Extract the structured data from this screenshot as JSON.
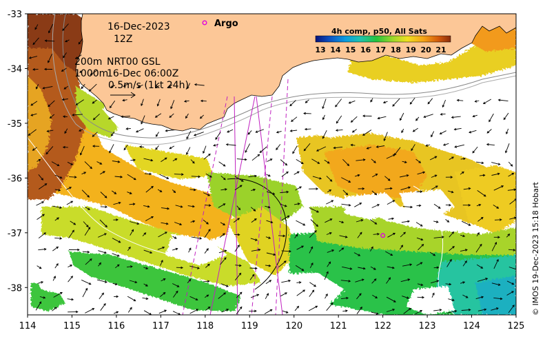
{
  "map": {
    "date": "16-Dec-2023",
    "hour": "12Z",
    "contour_200": "200m",
    "contour_1000": "1000m",
    "current_source": "NRT00 GSL",
    "current_time": "16-Dec 06:00Z",
    "arrow_scale": "0.5m/s (1kt 24h)",
    "argo_label": "Argo",
    "credit": "© IMOS 19-Dec-2023 15:18 Hobart",
    "land_color": "#fcc797",
    "argo_color": "#e000e0",
    "track_color": "#c020c0"
  },
  "colorbar": {
    "title": "4h comp, p50, All Sats",
    "ticks": [
      "13",
      "14",
      "15",
      "16",
      "17",
      "18",
      "19",
      "20",
      "21"
    ],
    "colors": [
      "#08137a",
      "#0c4fc0",
      "#0b9be0",
      "#1ec4b0",
      "#26c43d",
      "#9bd82a",
      "#f0e020",
      "#f5a215",
      "#d35a0b",
      "#8a2d0d"
    ]
  },
  "axes": {
    "x_ticks": [
      "114",
      "115",
      "116",
      "117",
      "118",
      "119",
      "120",
      "121",
      "122",
      "123",
      "124",
      "125"
    ],
    "y_ticks": [
      "-33",
      "-34",
      "-35",
      "-36",
      "-37",
      "-38"
    ],
    "x_range": [
      114,
      125
    ],
    "y_range": [
      -38.5,
      -33
    ]
  },
  "argo_floats": [
    {
      "lon": 122.0,
      "lat": -37.05
    }
  ]
}
